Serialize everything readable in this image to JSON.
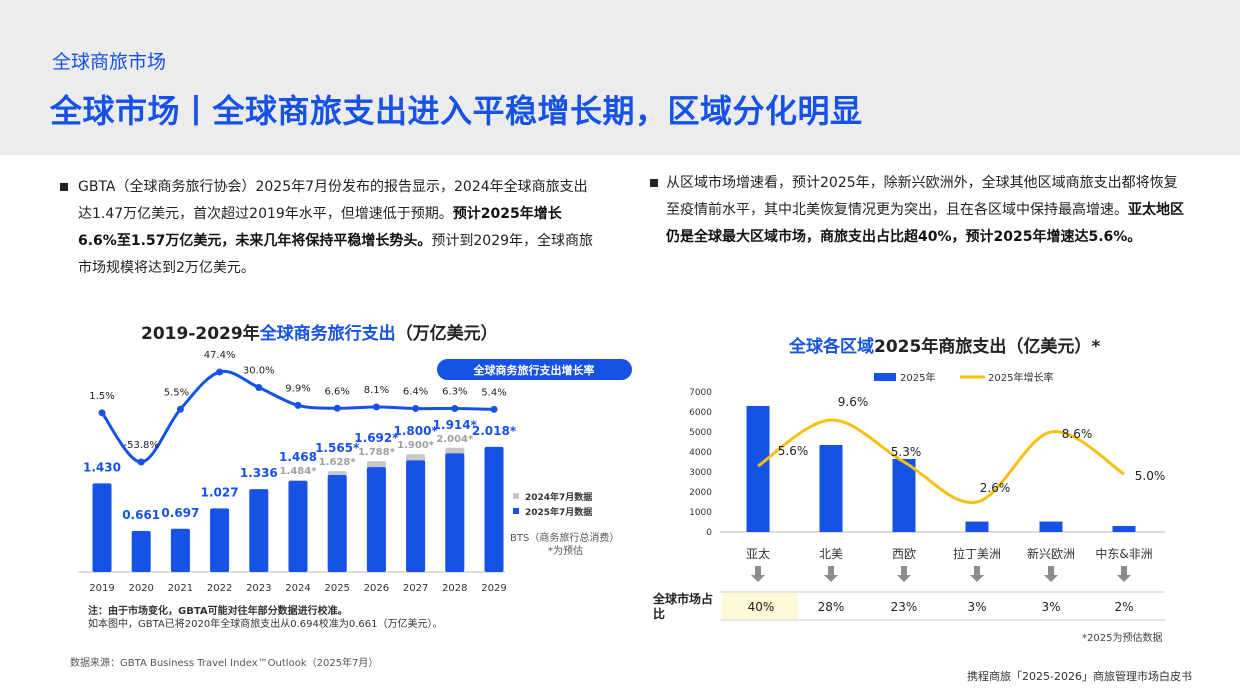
{
  "header": {
    "section_label": "全球商旅市场",
    "title": "全球市场丨全球商旅支出进入平稳增长期，区域分化明显"
  },
  "left_text": {
    "p1": "GBTA（全球商务旅行协会）2025年7月份发布的报告显示，2024年全球商旅支出达1.47万亿美元，首次超过2019年水平，但增速低于预期。",
    "b1": "预计2025年增长6.6%至1.57万亿美元，未来几年将保持平稳增长势头。",
    "p2": "预计到2029年，全球商旅市场规模将达到2万亿美元。"
  },
  "right_text": {
    "p1": "从区域市场增速看，预计2025年，除新兴欧洲外，全球其他区域商旅支出都将恢复至疫情前水平，其中北美恢复情况更为突出，且在各区域中保持最高增速。",
    "b1": "亚太地区仍是全球最大区域市场，商旅支出占比超40%，预计2025年增速达5.6%。"
  },
  "left_chart_title": {
    "prefix": "2019-2029年",
    "highlight": "全球商务旅行支出",
    "suffix": "（万亿美元）"
  },
  "right_chart_title": {
    "highlight": "全球各区域",
    "suffix": "2025年商旅支出（亿美元）*"
  },
  "notes": {
    "line1": "注：由于市场变化，GBTA可能对往年部分数据进行校准。",
    "line2": "如本图中，GBTA已将2020年全球商旅支出从0.694校准为0.661（万亿美元）。",
    "source": "数据来源：GBTA Business Travel Index™Outlook（2025年7月）",
    "footer": "携程商旅「2025-2026」商旅管理市场白皮书",
    "forecast_note": "*2025为预估数据",
    "share_label": "全球市场占比"
  },
  "chart_data": [
    {
      "type": "bar",
      "categories": [
        "2019",
        "2020",
        "2021",
        "2022",
        "2023",
        "2024",
        "2025",
        "2026",
        "2027",
        "2028",
        "2029"
      ],
      "series": [
        {
          "name": "2024年7月数据",
          "values": [
            null,
            null,
            null,
            null,
            null,
            1.484,
            1.628,
            1.788,
            1.9,
            2.004,
            null
          ],
          "labels": [
            "",
            "",
            "",
            "",
            "",
            "1.484*",
            "1.628*",
            "1.788*",
            "1.900*",
            "2.004*",
            ""
          ]
        },
        {
          "name": "2025年7月数据",
          "values": [
            1.43,
            0.661,
            0.697,
            1.027,
            1.336,
            1.468,
            1.565,
            1.692,
            1.8,
            1.914,
            2.018
          ],
          "labels": [
            "1.430",
            "0.661",
            "0.697",
            "1.027",
            "1.336",
            "1.468",
            "1.565*",
            "1.692*",
            "1.800*",
            "1.914*",
            "2.018*"
          ]
        },
        {
          "name": "全球商务旅行支出增长率",
          "type": "line",
          "values": [
            1.5,
            -53.8,
            5.5,
            47.4,
            30.0,
            9.9,
            6.6,
            8.1,
            6.4,
            6.3,
            5.4
          ],
          "labels": [
            "1.5%",
            "-53.8%",
            "5.5%",
            "47.4%",
            "30.0%",
            "9.9%",
            "6.6%",
            "8.1%",
            "6.4%",
            "6.3%",
            "5.4%"
          ]
        }
      ],
      "legend_badge": "全球商务旅行支出增长率",
      "bts_note": [
        "BTS（商务旅行总消费）",
        "*为预估"
      ],
      "colors": {
        "bar_2025": "#1652e6",
        "bar_2024": "#c8c8c8",
        "line": "#1652e6"
      }
    },
    {
      "type": "bar",
      "categories": [
        "亚太",
        "北美",
        "西欧",
        "拉丁美洲",
        "新兴欧洲",
        "中东&非洲"
      ],
      "series": [
        {
          "name": "2025年",
          "values": [
            6300,
            4350,
            3650,
            520,
            520,
            300
          ]
        },
        {
          "name": "2025年增长率",
          "type": "line",
          "values": [
            5.6,
            9.6,
            5.3,
            2.6,
            8.6,
            5.0
          ],
          "labels": [
            "5.6%",
            "9.6%",
            "5.3%",
            "2.6%",
            "8.6%",
            "5.0%"
          ]
        }
      ],
      "y_ticks": [
        "7000",
        "6000",
        "5000",
        "4000",
        "3000",
        "2000",
        "1000",
        "0"
      ],
      "ylim": [
        0,
        7000
      ],
      "share": [
        "40%",
        "28%",
        "23%",
        "3%",
        "3%",
        "2%"
      ],
      "colors": {
        "bar": "#1652e6",
        "line": "#f5c00f",
        "highlight_cell": "#fdf8d6"
      }
    }
  ]
}
